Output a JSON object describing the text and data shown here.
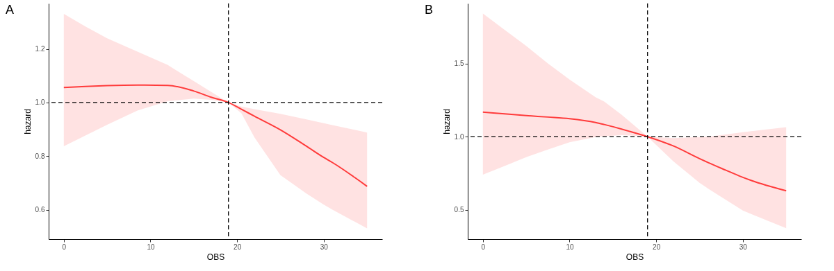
{
  "chart_data": [
    {
      "type": "line",
      "title": "A",
      "xlabel": "OBS",
      "ylabel": "hazard",
      "grid": false,
      "x": [
        0,
        2.5,
        5,
        8.5,
        12,
        15,
        17,
        19,
        20.5,
        22,
        25,
        28,
        30,
        31,
        35
      ],
      "series": [
        {
          "color": "#ff3b3b",
          "values": [
            1.056,
            1.06,
            1.063,
            1.065,
            1.064,
            1.043,
            1.02,
            1.0,
            0.975,
            0.949,
            0.898,
            0.837,
            0.795,
            0.776,
            0.687
          ],
          "lower": [
            0.837,
            0.877,
            0.917,
            0.97,
            1.005,
            1.015,
            1.01,
            1.0,
            0.96,
            0.87,
            0.729,
            0.66,
            0.619,
            0.6,
            0.53
          ],
          "upper": [
            1.331,
            1.284,
            1.24,
            1.19,
            1.14,
            1.08,
            1.04,
            1.0,
            0.985,
            0.975,
            0.958,
            0.937,
            0.923,
            0.916,
            0.888
          ]
        }
      ],
      "xlim": [
        -1.75,
        36.75
      ],
      "xticks": [
        0,
        10,
        20,
        30
      ],
      "ylim": [
        0.49,
        1.37
      ],
      "yticks": [
        {
          "value": 0.6,
          "label": "0.6"
        },
        {
          "value": 0.8,
          "label": "0.8"
        },
        {
          "value": 1,
          "label": "1.0"
        },
        {
          "value": 1.2,
          "label": "1.2"
        }
      ],
      "ref_lines": [
        {
          "axis": "y",
          "value": 1,
          "line_style": "dashed",
          "color": "#000000"
        },
        {
          "axis": "x",
          "value": 19,
          "line_style": "dashed",
          "color": "#000000"
        }
      ]
    },
    {
      "type": "line",
      "title": "B",
      "xlabel": "OBS",
      "ylabel": "hazard",
      "grid": false,
      "x": [
        0,
        2.5,
        5,
        7.5,
        10,
        13,
        14,
        16,
        17,
        19,
        22,
        25,
        26,
        28,
        30,
        31,
        35
      ],
      "series": [
        {
          "color": "#ff3b3b",
          "values": [
            1.168,
            1.156,
            1.144,
            1.134,
            1.123,
            1.097,
            1.083,
            1.052,
            1.035,
            1.0,
            0.936,
            0.85,
            0.823,
            0.772,
            0.722,
            0.7,
            0.63
          ],
          "lower": [
            0.74,
            0.8,
            0.86,
            0.912,
            0.962,
            0.997,
            1.003,
            1.01,
            1.008,
            1.0,
            0.83,
            0.685,
            0.645,
            0.57,
            0.495,
            0.47,
            0.374
          ],
          "upper": [
            1.841,
            1.73,
            1.62,
            1.5,
            1.39,
            1.27,
            1.24,
            1.15,
            1.1,
            1.0,
            0.99,
            0.997,
            1.0,
            1.015,
            1.03,
            1.037,
            1.065
          ]
        }
      ],
      "xlim": [
        -1.75,
        36.75
      ],
      "xticks": [
        0,
        10,
        20,
        30
      ],
      "ylim": [
        0.3,
        1.91
      ],
      "yticks": [
        {
          "value": 0.5,
          "label": "0.5"
        },
        {
          "value": 1,
          "label": "1.0"
        },
        {
          "value": 1.5,
          "label": "1.5"
        }
      ],
      "ref_lines": [
        {
          "axis": "y",
          "value": 1,
          "line_style": "dashed",
          "color": "#000000"
        },
        {
          "axis": "x",
          "value": 19,
          "line_style": "dashed",
          "color": "#000000"
        }
      ]
    }
  ]
}
